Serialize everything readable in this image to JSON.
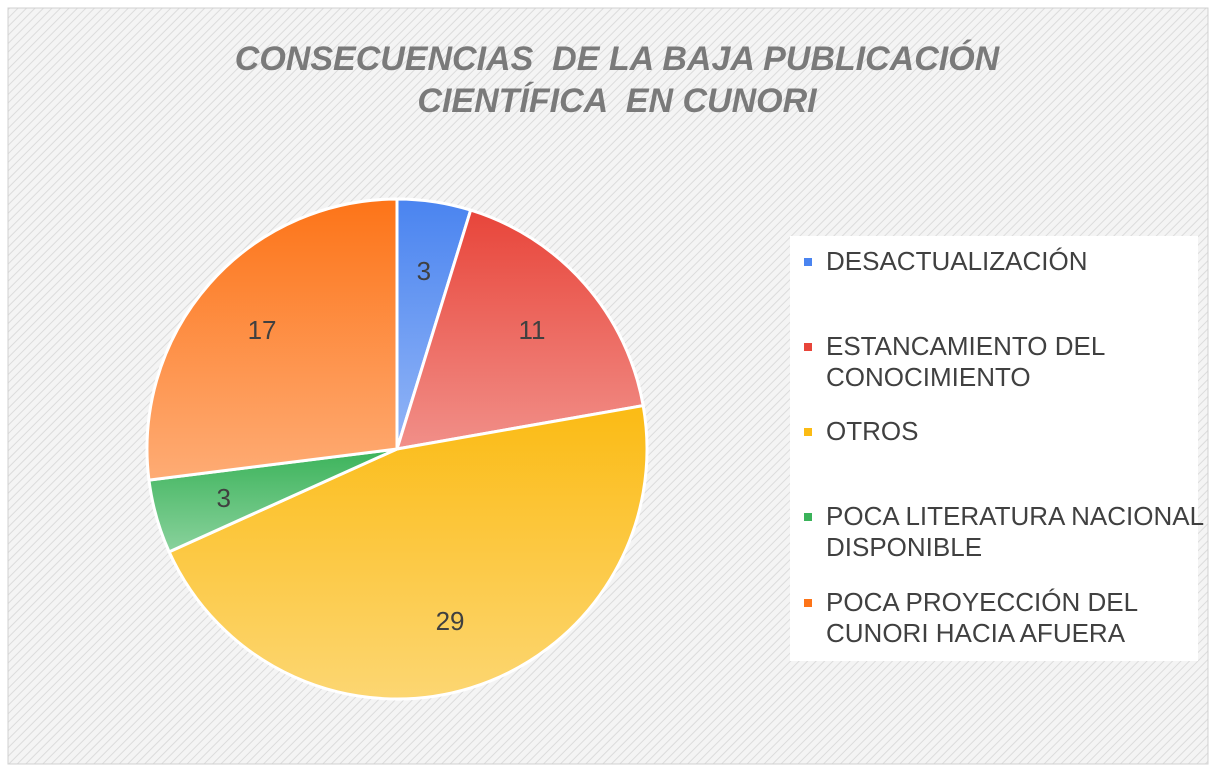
{
  "chart_data": {
    "type": "pie",
    "title": [
      "CONSECUENCIAS  DE LA BAJA PUBLICACIÓN",
      "CIENTÍFICA  EN CUNORI"
    ],
    "categories": [
      "DESACTUALIZACIÓN",
      "ESTANCAMIENTO DEL CONOCIMIENTO",
      "OTROS",
      "POCA LITERATURA NACIONAL DISPONIBLE",
      "POCA PROYECCIÓN DEL CUNORI HACIA AFUERA"
    ],
    "values": [
      3,
      11,
      29,
      3,
      17
    ],
    "colors": [
      "#4a84f0",
      "#e8453a",
      "#fbbb14",
      "#3bb35a",
      "#fd7418"
    ],
    "legend": "right"
  }
}
